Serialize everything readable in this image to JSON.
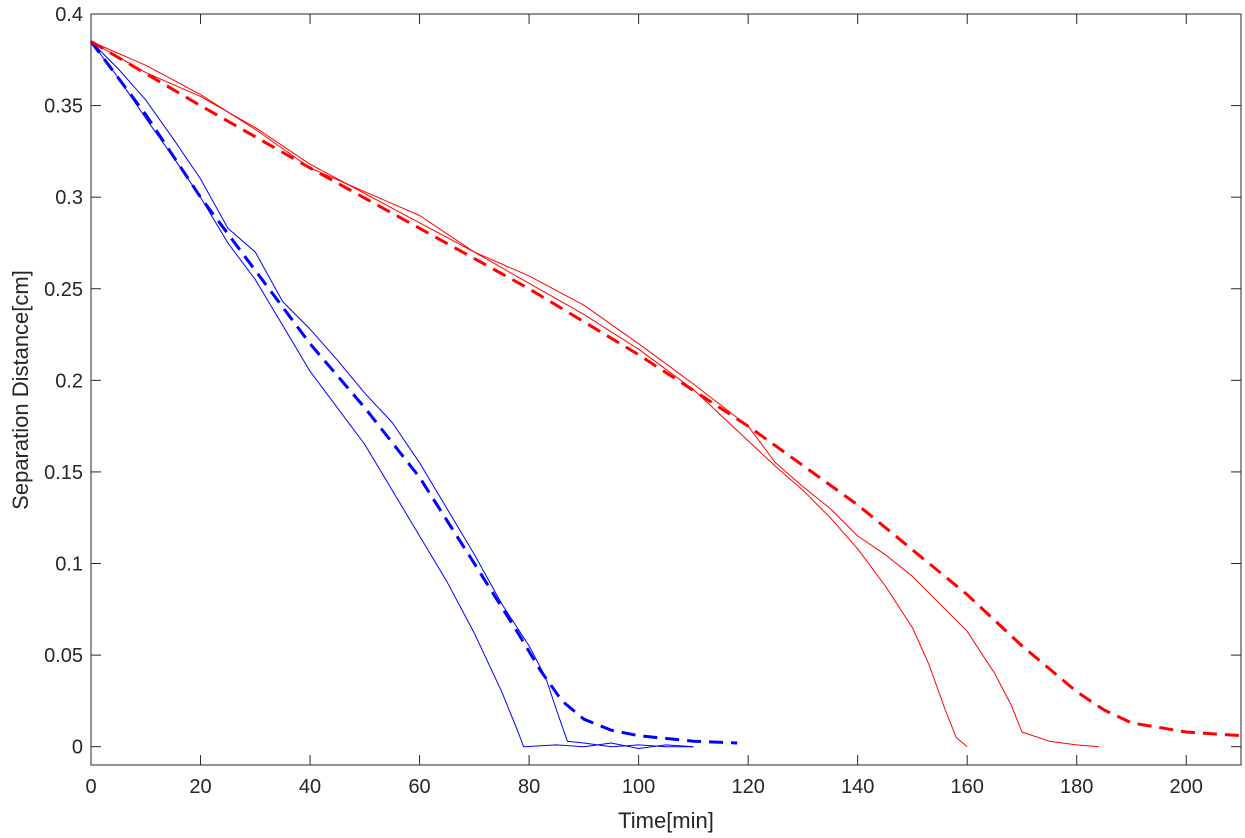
{
  "chart_data": {
    "type": "line",
    "title": "",
    "xlabel": "Time[min]",
    "ylabel": "Separation Distance[cm]",
    "xlim": [
      0,
      210
    ],
    "ylim": [
      -0.01,
      0.4
    ],
    "x_ticks": [
      0,
      20,
      40,
      60,
      80,
      100,
      120,
      140,
      160,
      180,
      200
    ],
    "x_tick_labels": [
      "0",
      "20",
      "40",
      "60",
      "80",
      "100",
      "120",
      "140",
      "160",
      "180",
      "200"
    ],
    "y_ticks": [
      0,
      0.05,
      0.1,
      0.15,
      0.2,
      0.25,
      0.3,
      0.35,
      0.4
    ],
    "y_tick_labels": [
      "0",
      "0.05",
      "0.1",
      "0.15",
      "0.2",
      "0.25",
      "0.3",
      "0.35",
      "0.4"
    ],
    "grid": false,
    "legend": "none",
    "series": [
      {
        "color": "#0000ff",
        "style": "solid",
        "width": 1,
        "x": [
          0,
          5,
          10,
          15,
          20,
          25,
          30,
          35,
          40,
          45,
          50,
          55,
          60,
          65,
          70,
          75,
          78,
          79,
          85,
          90,
          95,
          100,
          105,
          110
        ],
        "y": [
          0.385,
          0.365,
          0.343,
          0.322,
          0.3,
          0.275,
          0.255,
          0.23,
          0.205,
          0.185,
          0.165,
          0.14,
          0.115,
          0.09,
          0.062,
          0.03,
          0.008,
          0.0,
          0.001,
          0.0,
          0.002,
          -0.001,
          0.001,
          0.0
        ]
      },
      {
        "color": "#0000ff",
        "style": "solid",
        "width": 1,
        "x": [
          0,
          5,
          10,
          15,
          20,
          25,
          30,
          35,
          40,
          45,
          50,
          55,
          60,
          65,
          70,
          75,
          80,
          83,
          85,
          87,
          90,
          95,
          100,
          105,
          110
        ],
        "y": [
          0.385,
          0.37,
          0.353,
          0.332,
          0.31,
          0.283,
          0.27,
          0.243,
          0.228,
          0.211,
          0.193,
          0.177,
          0.155,
          0.13,
          0.105,
          0.078,
          0.055,
          0.038,
          0.02,
          0.003,
          0.002,
          0.0,
          0.001,
          0.0,
          0.0
        ]
      },
      {
        "color": "#ff0000",
        "style": "solid",
        "width": 1,
        "x": [
          0,
          10,
          20,
          30,
          40,
          50,
          60,
          70,
          80,
          90,
          100,
          110,
          120,
          125,
          130,
          135,
          140,
          145,
          150,
          153,
          156,
          158,
          160
        ],
        "y": [
          0.385,
          0.368,
          0.355,
          0.338,
          0.318,
          0.302,
          0.286,
          0.27,
          0.253,
          0.236,
          0.217,
          0.195,
          0.167,
          0.153,
          0.14,
          0.125,
          0.108,
          0.088,
          0.065,
          0.045,
          0.02,
          0.005,
          0.0
        ]
      },
      {
        "color": "#ff0000",
        "style": "solid",
        "width": 1,
        "x": [
          0,
          10,
          20,
          30,
          40,
          50,
          60,
          70,
          80,
          90,
          100,
          110,
          120,
          125,
          130,
          135,
          140,
          145,
          150,
          155,
          160,
          165,
          168,
          170,
          175,
          180,
          184
        ],
        "y": [
          0.385,
          0.372,
          0.356,
          0.337,
          0.316,
          0.303,
          0.29,
          0.27,
          0.257,
          0.241,
          0.22,
          0.198,
          0.175,
          0.155,
          0.142,
          0.13,
          0.115,
          0.105,
          0.093,
          0.078,
          0.063,
          0.04,
          0.023,
          0.008,
          0.003,
          0.001,
          0.0
        ]
      },
      {
        "color": "#0000ff",
        "style": "dashed",
        "width": 3,
        "x": [
          0,
          10,
          20,
          30,
          40,
          50,
          60,
          70,
          78,
          82,
          86,
          90,
          95,
          100,
          110,
          118
        ],
        "y": [
          0.385,
          0.345,
          0.3,
          0.26,
          0.22,
          0.185,
          0.147,
          0.1,
          0.062,
          0.042,
          0.025,
          0.015,
          0.009,
          0.006,
          0.003,
          0.002
        ]
      },
      {
        "color": "#ff0000",
        "style": "dashed",
        "width": 3,
        "x": [
          0,
          20,
          40,
          60,
          80,
          100,
          120,
          140,
          160,
          170,
          180,
          185,
          190,
          200,
          210
        ],
        "y": [
          0.385,
          0.35,
          0.316,
          0.283,
          0.25,
          0.214,
          0.175,
          0.132,
          0.083,
          0.055,
          0.03,
          0.02,
          0.013,
          0.008,
          0.006
        ]
      }
    ]
  }
}
